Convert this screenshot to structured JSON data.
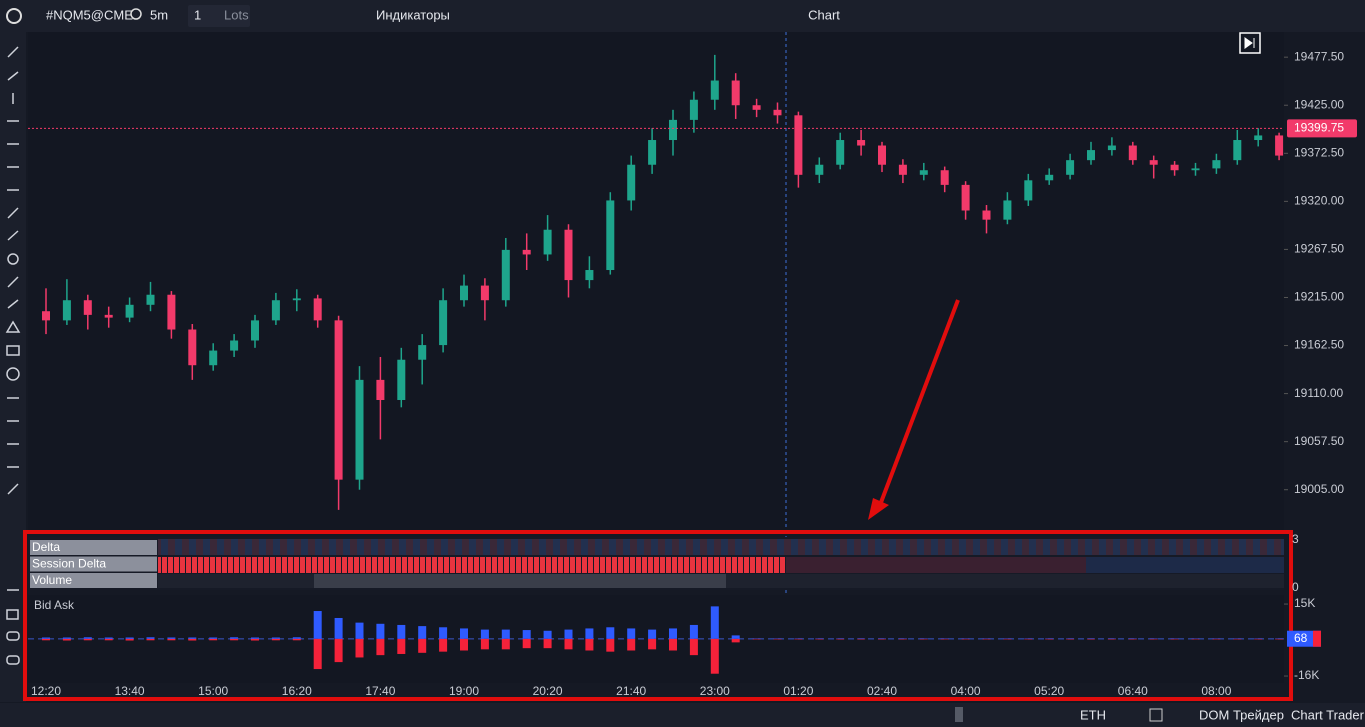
{
  "toolbar": {
    "symbol": "#NQM5@CME",
    "timeframe": "5m",
    "quantity": "1",
    "unit": "Lots",
    "indicators": "Индикаторы",
    "title": "Chart"
  },
  "status_bar": {
    "session": "ETH",
    "dom": "DOM Трейдер",
    "chart_trader": "Chart Trader"
  },
  "indicator_panel": {
    "labels": [
      "Delta",
      "Session Delta",
      "Volume"
    ],
    "axis": [
      3,
      0
    ]
  },
  "chart_data": [
    {
      "type": "candlestick",
      "up_color": "#1ea58c",
      "down_color": "#f23a6a",
      "ylim": [
        18961,
        19505
      ],
      "yticks": [
        {
          "value": 19477.5,
          "label": "19477.50"
        },
        {
          "value": 19425,
          "label": "19425.00"
        },
        {
          "value": 19372.5,
          "label": "19372.50"
        },
        {
          "value": 19320,
          "label": "19320.00"
        },
        {
          "value": 19267.5,
          "label": "19267.50"
        },
        {
          "value": 19215,
          "label": "19215.00"
        },
        {
          "value": 19162.5,
          "label": "19162.50"
        },
        {
          "value": 19110,
          "label": "19110.00"
        },
        {
          "value": 19057.5,
          "label": "19057.50"
        },
        {
          "value": 19005,
          "label": "19005.00"
        }
      ],
      "last_price": 19399.75,
      "time_labels": [
        "12:20",
        "13:40",
        "15:00",
        "16:20",
        "17:40",
        "19:00",
        "20:20",
        "21:40",
        "23:00",
        "01:20",
        "02:40",
        "04:00",
        "05:20",
        "06:40",
        "08:00"
      ],
      "candles": [
        [
          19200,
          19225,
          19175,
          19190
        ],
        [
          19190,
          19235,
          19185,
          19212
        ],
        [
          19212,
          19218,
          19180,
          19196
        ],
        [
          19196,
          19205,
          19182,
          19193
        ],
        [
          19193,
          19215,
          19188,
          19207
        ],
        [
          19207,
          19232,
          19200,
          19218
        ],
        [
          19218,
          19222,
          19170,
          19180
        ],
        [
          19180,
          19186,
          19125,
          19141
        ],
        [
          19141,
          19165,
          19135,
          19157
        ],
        [
          19157,
          19175,
          19150,
          19168
        ],
        [
          19168,
          19196,
          19160,
          19190
        ],
        [
          19190,
          19220,
          19185,
          19212
        ],
        [
          19212,
          19224,
          19200,
          19214
        ],
        [
          19214,
          19218,
          19182,
          19190
        ],
        [
          19190,
          19195,
          18983,
          19016
        ],
        [
          19016,
          19140,
          19005,
          19125
        ],
        [
          19125,
          19150,
          19060,
          19103
        ],
        [
          19103,
          19160,
          19095,
          19147
        ],
        [
          19147,
          19175,
          19120,
          19163
        ],
        [
          19163,
          19225,
          19155,
          19212
        ],
        [
          19212,
          19240,
          19205,
          19228
        ],
        [
          19228,
          19236,
          19190,
          19212
        ],
        [
          19212,
          19280,
          19205,
          19267
        ],
        [
          19267,
          19285,
          19245,
          19262
        ],
        [
          19262,
          19305,
          19255,
          19289
        ],
        [
          19289,
          19295,
          19215,
          19234
        ],
        [
          19234,
          19260,
          19225,
          19245
        ],
        [
          19245,
          19330,
          19240,
          19321
        ],
        [
          19321,
          19370,
          19310,
          19360
        ],
        [
          19360,
          19400,
          19350,
          19387
        ],
        [
          19387,
          19420,
          19370,
          19409
        ],
        [
          19409,
          19440,
          19395,
          19431
        ],
        [
          19431,
          19480,
          19420,
          19452
        ],
        [
          19452,
          19460,
          19410,
          19425
        ],
        [
          19425,
          19432,
          19412,
          19420
        ],
        [
          19420,
          19428,
          19405,
          19414
        ],
        [
          19414,
          19418,
          19335,
          19349
        ],
        [
          19349,
          19368,
          19340,
          19360
        ],
        [
          19360,
          19395,
          19355,
          19387
        ],
        [
          19387,
          19398,
          19370,
          19381
        ],
        [
          19381,
          19385,
          19352,
          19360
        ],
        [
          19360,
          19366,
          19340,
          19349
        ],
        [
          19349,
          19362,
          19343,
          19354
        ],
        [
          19354,
          19358,
          19330,
          19338
        ],
        [
          19338,
          19342,
          19300,
          19310
        ],
        [
          19310,
          19316,
          19285,
          19300
        ],
        [
          19300,
          19330,
          19295,
          19321
        ],
        [
          19321,
          19350,
          19315,
          19343
        ],
        [
          19343,
          19356,
          19338,
          19349
        ],
        [
          19349,
          19372,
          19344,
          19365
        ],
        [
          19365,
          19385,
          19360,
          19376
        ],
        [
          19376,
          19390,
          19370,
          19381
        ],
        [
          19381,
          19385,
          19360,
          19365
        ],
        [
          19365,
          19370,
          19345,
          19360
        ],
        [
          19360,
          19364,
          19348,
          19354
        ],
        [
          19354,
          19362,
          19348,
          19356
        ],
        [
          19356,
          19372,
          19350,
          19365
        ],
        [
          19365,
          19398,
          19360,
          19387
        ],
        [
          19387,
          19400,
          19380,
          19392
        ],
        [
          19392,
          19395,
          19365,
          19370
        ]
      ]
    },
    {
      "type": "bar",
      "title": "Bid Ask",
      "ylim": [
        -19000,
        18900
      ],
      "yticks": [
        {
          "value": 15000,
          "label": "15K"
        },
        {
          "value": -16000,
          "label": "-16K"
        }
      ],
      "last_value": 68,
      "series": [
        {
          "color": "#2f5bff",
          "values": [
            600,
            600,
            700,
            600,
            600,
            700,
            600,
            600,
            600,
            700,
            600,
            600,
            700,
            12000,
            9000,
            7000,
            6500,
            6000,
            5500,
            5000,
            4500,
            4000,
            4000,
            3800,
            3500,
            4000,
            4500,
            5000,
            4500,
            4000,
            4500,
            6000,
            14000,
            1500,
            200,
            200,
            200,
            200,
            200,
            200,
            200,
            200,
            200,
            200,
            200,
            200,
            200,
            200,
            200,
            200,
            200,
            200,
            200,
            200,
            200,
            200,
            200,
            200,
            200,
            200
          ]
        },
        {
          "color": "#f5223a",
          "values": [
            -600,
            -700,
            -600,
            -600,
            -700,
            -600,
            -600,
            -700,
            -600,
            -600,
            -700,
            -600,
            -600,
            -13000,
            -10000,
            -8000,
            -7000,
            -6500,
            -6000,
            -5500,
            -5000,
            -4500,
            -4500,
            -4000,
            -4000,
            -4500,
            -5000,
            -5500,
            -5000,
            -4500,
            -5000,
            -7000,
            -15000,
            -1500,
            -200,
            -200,
            -200,
            -200,
            -200,
            -200,
            -200,
            -200,
            -200,
            -200,
            -200,
            -200,
            -200,
            -200,
            -200,
            -200,
            -200,
            -200,
            -200,
            -200,
            -200,
            -200,
            -200,
            -200,
            -200,
            -200
          ]
        }
      ]
    }
  ]
}
